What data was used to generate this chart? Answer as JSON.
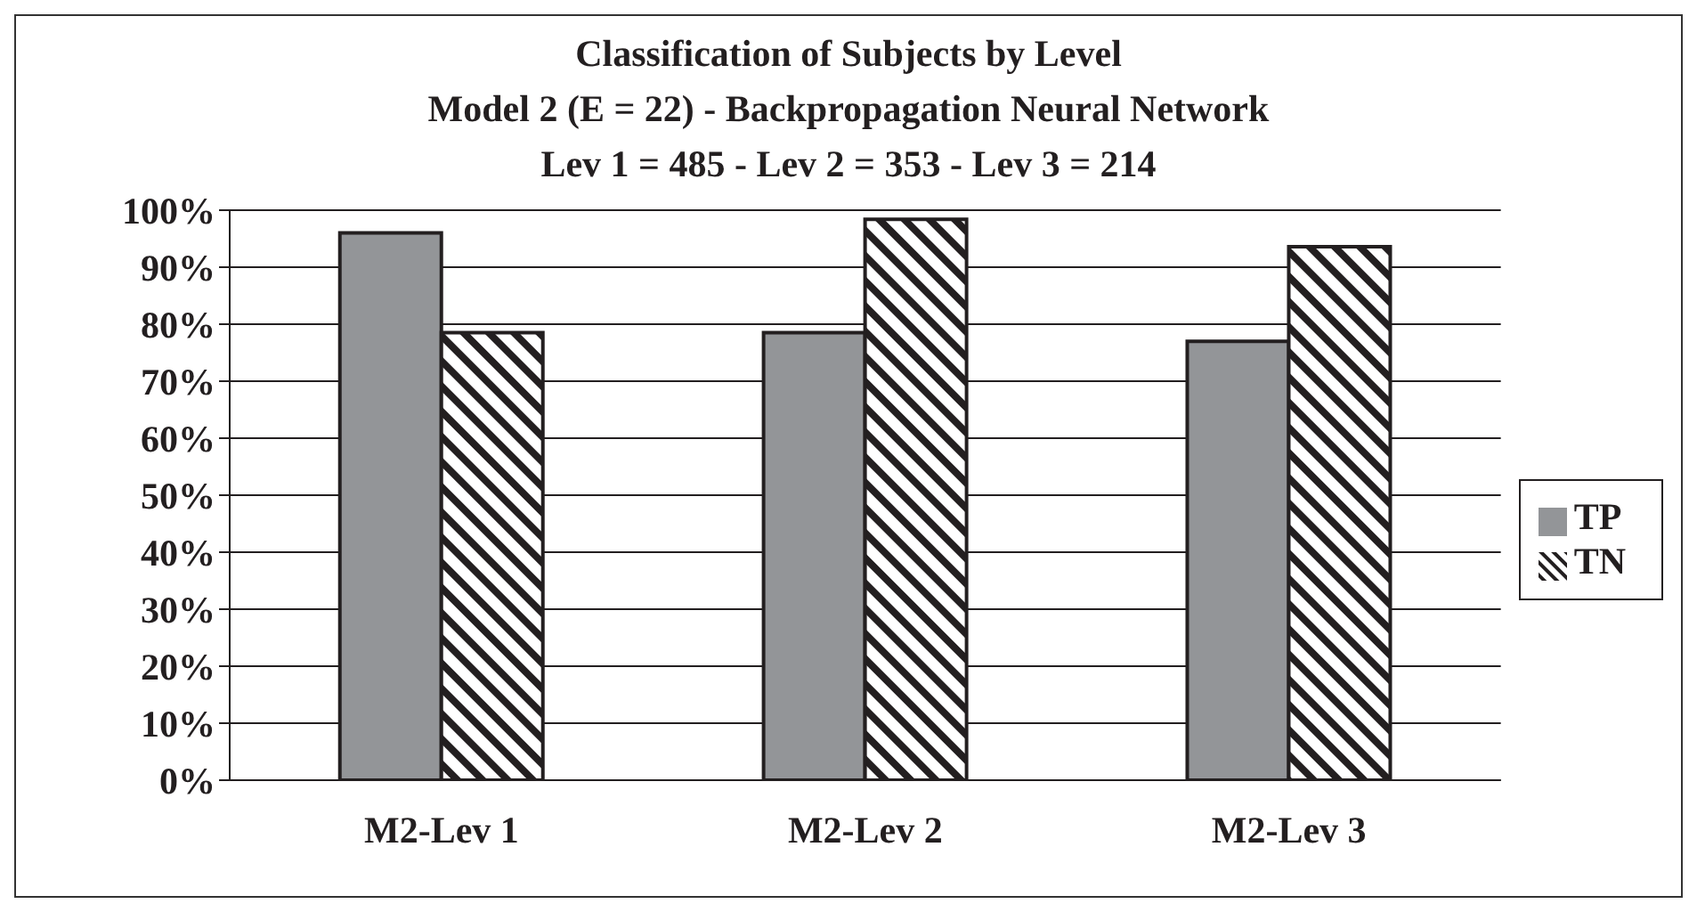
{
  "chart_data": {
    "type": "bar",
    "title": "Classification of Subjects by Level",
    "subtitle": "Model 2 (E = 22) - Backpropagation Neural Network\nLev 1 = 485 - Lev 2 = 353 - Lev 3 = 214",
    "categories": [
      "M2-Lev 1",
      "M2-Lev 2",
      "M2-Lev 3"
    ],
    "series": [
      {
        "name": "TP",
        "color": "#939598",
        "values": [
          96,
          78.5,
          77
        ]
      },
      {
        "name": "TN",
        "color": "#231f20",
        "values": [
          78.5,
          98.4,
          93.6
        ]
      }
    ],
    "ylim": [
      0,
      100
    ],
    "yticks": [
      {
        "value": 0,
        "label": "0%"
      },
      {
        "value": 10,
        "label": "10%"
      },
      {
        "value": 20,
        "label": "20%"
      },
      {
        "value": 30,
        "label": "30%"
      },
      {
        "value": 40,
        "label": "40%"
      },
      {
        "value": 50,
        "label": "50%"
      },
      {
        "value": 60,
        "label": "60%"
      },
      {
        "value": 70,
        "label": "70%"
      },
      {
        "value": 80,
        "label": "80%"
      },
      {
        "value": 90,
        "label": "90%"
      },
      {
        "value": 100,
        "label": "100%"
      }
    ],
    "grid": "y",
    "legend": "right"
  }
}
